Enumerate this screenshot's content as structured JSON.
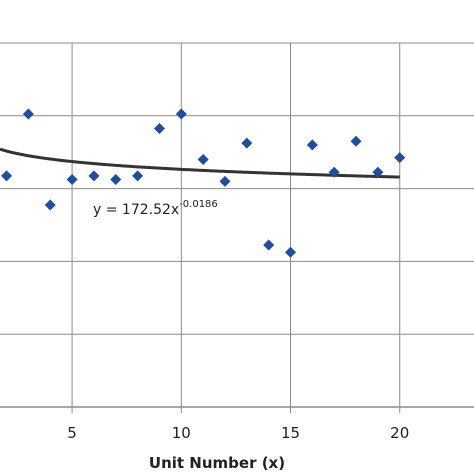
{
  "chart_data": {
    "type": "scatter",
    "title": "",
    "xlabel": "Unit Number (x)",
    "ylabel": "",
    "xlim": [
      1.7,
      23.4
    ],
    "ylim": [
      100,
      200
    ],
    "grid": true,
    "xticks": [
      5,
      10,
      15,
      20
    ],
    "xtick_labels": [
      "5",
      "10",
      "15",
      "20"
    ],
    "y_gridlines": [
      100,
      120,
      140,
      160,
      180,
      200
    ],
    "series": [
      {
        "x": [
          2,
          3,
          4,
          5,
          6,
          7,
          8,
          9,
          10,
          11,
          12,
          13,
          14,
          15,
          16,
          17,
          18,
          19,
          20
        ],
        "y": [
          163.5,
          180.5,
          155.5,
          162.5,
          163.5,
          162.5,
          163.5,
          176.5,
          180.5,
          168,
          162,
          172.5,
          144.5,
          142.5,
          172,
          164.5,
          173,
          164.5,
          168.5
        ]
      }
    ],
    "trendline": {
      "type": "power",
      "a": 172.52,
      "b": -0.0186,
      "equation_main": "y = 172.52x",
      "equation_exp": "-0.0186"
    },
    "colors": {
      "marker": "#1f4e9c",
      "trendline": "#333333",
      "grid": "#8c8c8c",
      "axis": "#8c8c8c"
    }
  }
}
